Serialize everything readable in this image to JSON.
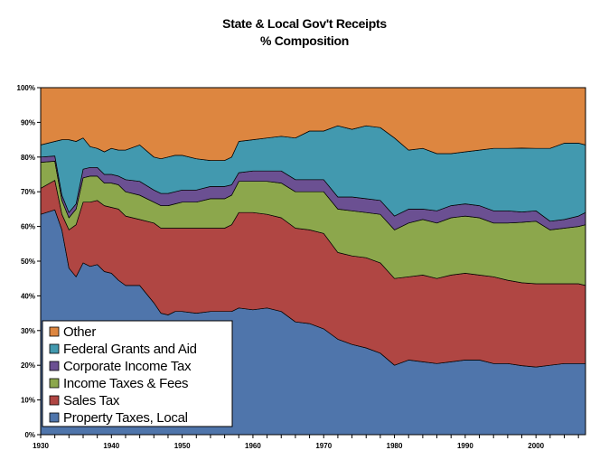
{
  "chart_data": {
    "type": "area",
    "stacked": true,
    "title": "State & Local Gov't Receipts",
    "subtitle": "% Composition",
    "xlabel": "",
    "ylabel": "",
    "xlim": [
      1930,
      2007
    ],
    "ylim": [
      0,
      100
    ],
    "x_ticks": [
      "1930",
      "1940",
      "1950",
      "1960",
      "1970",
      "1980",
      "1990",
      "2000"
    ],
    "y_ticks": [
      "0%",
      "10%",
      "20%",
      "30%",
      "40%",
      "50%",
      "60%",
      "70%",
      "80%",
      "90%",
      "100%"
    ],
    "grid": false,
    "legend_position": "bottom-left",
    "x": [
      1930,
      1932,
      1933,
      1934,
      1935,
      1936,
      1937,
      1938,
      1939,
      1940,
      1941,
      1942,
      1944,
      1946,
      1947,
      1948,
      1949,
      1950,
      1952,
      1954,
      1956,
      1957,
      1958,
      1960,
      1962,
      1964,
      1966,
      1968,
      1970,
      1972,
      1974,
      1976,
      1978,
      1980,
      1982,
      1984,
      1986,
      1988,
      1990,
      1992,
      1994,
      1996,
      1998,
      2000,
      2002,
      2004,
      2006,
      2007
    ],
    "series": [
      {
        "name": "Property Taxes, Local",
        "color": "#4f75ab",
        "values": [
          63.5,
          64.8,
          59.0,
          48.0,
          45.5,
          49.5,
          48.5,
          49.0,
          47.0,
          46.5,
          44.5,
          43.0,
          43.0,
          38.0,
          35.0,
          34.5,
          35.5,
          35.5,
          35.0,
          35.5,
          35.5,
          35.5,
          36.5,
          36.0,
          36.5,
          35.5,
          32.5,
          32.0,
          30.5,
          27.5,
          26.0,
          25.0,
          23.5,
          20.0,
          21.5,
          21.0,
          20.5,
          21.0,
          21.5,
          21.5,
          20.5,
          20.5,
          20.0,
          19.5,
          20.0,
          20.5,
          20.5,
          20.5
        ]
      },
      {
        "name": "Sales Tax",
        "color": "#b04643",
        "values": [
          7.5,
          8.5,
          4.5,
          11.0,
          15.0,
          17.5,
          18.5,
          18.5,
          19.0,
          19.0,
          20.5,
          20.0,
          19.0,
          23.0,
          24.5,
          25.0,
          24.0,
          24.0,
          24.5,
          24.0,
          24.0,
          25.0,
          27.5,
          28.0,
          27.0,
          27.0,
          27.0,
          27.0,
          27.5,
          25.0,
          25.5,
          26.0,
          26.0,
          25.0,
          24.0,
          25.0,
          24.5,
          25.0,
          25.0,
          24.5,
          25.0,
          24.0,
          24.0,
          24.0,
          23.5,
          23.0,
          23.0,
          22.5
        ]
      },
      {
        "name": "Income Taxes & Fees",
        "color": "#8ca74c",
        "values": [
          7.5,
          5.5,
          4.0,
          3.5,
          4.5,
          7.0,
          7.5,
          7.0,
          6.5,
          7.0,
          7.0,
          7.0,
          7.0,
          6.0,
          6.5,
          6.5,
          7.0,
          7.5,
          7.5,
          8.5,
          8.5,
          8.5,
          9.0,
          9.0,
          9.5,
          10.0,
          10.5,
          11.0,
          12.0,
          12.5,
          13.0,
          13.0,
          14.0,
          14.0,
          15.5,
          16.0,
          16.0,
          16.5,
          16.5,
          16.5,
          15.5,
          16.5,
          17.5,
          18.0,
          15.5,
          16.0,
          16.5,
          17.5
        ]
      },
      {
        "name": "Corporate Income Tax",
        "color": "#6b5092",
        "values": [
          1.5,
          1.5,
          1.5,
          1.5,
          1.5,
          2.5,
          2.5,
          2.5,
          2.5,
          2.5,
          2.5,
          3.5,
          4.0,
          3.5,
          3.5,
          3.5,
          3.5,
          3.5,
          3.5,
          3.5,
          3.5,
          3.0,
          2.5,
          3.0,
          3.0,
          3.5,
          3.5,
          3.5,
          3.5,
          3.5,
          4.0,
          4.0,
          4.0,
          4.0,
          4.0,
          3.0,
          3.5,
          3.5,
          3.5,
          3.5,
          3.5,
          3.5,
          3.0,
          3.0,
          2.5,
          2.5,
          3.0,
          3.5
        ]
      },
      {
        "name": "Federal Grants and Aid",
        "color": "#4299af",
        "values": [
          3.5,
          4.2,
          16.0,
          21.0,
          18.0,
          9.0,
          6.0,
          5.5,
          6.5,
          7.5,
          7.5,
          8.5,
          10.5,
          9.5,
          10.0,
          10.5,
          10.5,
          10.0,
          9.0,
          7.5,
          7.5,
          8.0,
          9.0,
          9.0,
          9.5,
          10.0,
          12.0,
          14.0,
          14.0,
          20.5,
          19.5,
          21.0,
          21.0,
          22.5,
          17.0,
          17.5,
          16.5,
          15.0,
          15.0,
          16.0,
          18.0,
          18.0,
          18.5,
          18.0,
          21.0,
          22.0,
          21.0,
          19.5
        ]
      },
      {
        "name": "Other",
        "color": "#dd8640",
        "values": [
          16.5,
          15.5,
          15.0,
          15.0,
          15.5,
          14.5,
          17.0,
          17.5,
          18.5,
          17.5,
          18.0,
          18.0,
          16.5,
          20.0,
          20.5,
          20.0,
          19.5,
          19.5,
          20.5,
          21.0,
          21.0,
          20.0,
          15.5,
          15.0,
          14.5,
          14.0,
          14.5,
          12.5,
          12.5,
          11.0,
          12.0,
          11.0,
          11.5,
          14.5,
          18.0,
          17.5,
          19.0,
          19.0,
          18.5,
          18.0,
          17.5,
          17.5,
          17.5,
          17.5,
          17.5,
          16.0,
          16.0,
          16.5
        ]
      }
    ]
  }
}
